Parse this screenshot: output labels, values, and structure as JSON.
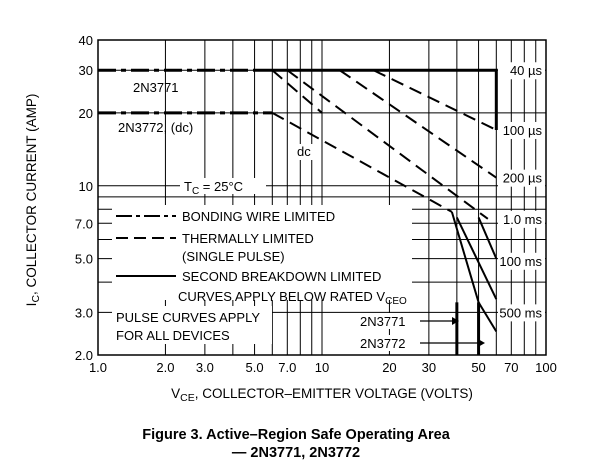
{
  "figure": {
    "caption_line1": "Figure 3. Active–Region Safe Operating Area",
    "caption_line2": "— 2N3771, 2N3772"
  },
  "chart_data": {
    "type": "line",
    "log_x": true,
    "log_y": true,
    "xlim": [
      1,
      100
    ],
    "ylim": [
      2,
      40
    ],
    "grid": true,
    "xlabel": "V",
    "xlabel_sub": "CE",
    "xlabel_rest": ", COLLECTOR–EMITTER VOLTAGE (VOLTS)",
    "ylabel": "I",
    "ylabel_sub": "C",
    "ylabel_rest": ", COLLECTOR CURRENT (AMP)",
    "x_ticks": [
      {
        "value": 1,
        "label": "1.0"
      },
      {
        "value": 2,
        "label": "2.0"
      },
      {
        "value": 3,
        "label": "3.0"
      },
      {
        "value": 5,
        "label": "5.0"
      },
      {
        "value": 7,
        "label": "7.0"
      },
      {
        "value": 10,
        "label": "10"
      },
      {
        "value": 20,
        "label": "20"
      },
      {
        "value": 30,
        "label": "30"
      },
      {
        "value": 50,
        "label": "50"
      },
      {
        "value": 70,
        "label": "70"
      },
      {
        "value": 100,
        "label": "100"
      }
    ],
    "y_ticks": [
      {
        "value": 2,
        "label": "2.0"
      },
      {
        "value": 3,
        "label": "3.0"
      },
      {
        "value": 5,
        "label": "5.0"
      },
      {
        "value": 7,
        "label": "7.0"
      },
      {
        "value": 10,
        "label": "10"
      },
      {
        "value": 20,
        "label": "20"
      },
      {
        "value": 30,
        "label": "30"
      },
      {
        "value": 40,
        "label": "40"
      }
    ],
    "legend": {
      "items": [
        {
          "style": "dashdot",
          "label": "BONDING WIRE LIMITED"
        },
        {
          "style": "dashed",
          "label": "THERMALLY LIMITED"
        },
        {
          "style": "none",
          "label": "(SINGLE PULSE)"
        },
        {
          "style": "solid",
          "label": "SECOND BREAKDOWN LIMITED"
        }
      ],
      "note_prefix": "CURVES APPLY BELOW RATED V",
      "note_sub": "CEO"
    },
    "pulse_note": [
      "PULSE CURVES APPLY",
      "FOR ALL DEVICES"
    ],
    "temperature": {
      "prefix": "T",
      "sub": "C",
      "suffix": " = 25°C"
    },
    "device_labels": {
      "n3771_top": "2N3771",
      "n3772_dc": "2N3772, (dc)",
      "dc": "dc",
      "n3771_arrow": "2N3771",
      "n3772_arrow": "2N3772"
    },
    "pulse_labels": [
      {
        "label": "40 µs",
        "y": 30
      },
      {
        "label": "100 µs",
        "y": 17
      },
      {
        "label": "200 µs",
        "y": 10.8
      },
      {
        "label": "1.0 ms",
        "y": 7.3
      },
      {
        "label": "100 ms",
        "y": 4.9
      },
      {
        "label": "500 ms",
        "y": 3.0
      }
    ],
    "series": [
      {
        "key": "2N3771 bonding wire limited",
        "style": "dashdot",
        "width": 3,
        "points": [
          [
            1,
            30
          ],
          [
            5,
            30
          ]
        ]
      },
      {
        "key": "2N3771 40us",
        "style": "solid",
        "width": 3,
        "points": [
          [
            5,
            30
          ],
          [
            60,
            30
          ],
          [
            60,
            17
          ]
        ]
      },
      {
        "key": "2N3772 bonding wire limited",
        "style": "dashdot",
        "width": 3,
        "points": [
          [
            1,
            20
          ],
          [
            6,
            20
          ]
        ]
      },
      {
        "key": "dc thermal",
        "style": "dashed",
        "width": 2,
        "points": [
          [
            6,
            20
          ],
          [
            38,
            7.8
          ]
        ]
      },
      {
        "key": "100us thermal",
        "style": "dashed",
        "width": 2,
        "points": [
          [
            17,
            30
          ],
          [
            60,
            17
          ]
        ]
      },
      {
        "key": "200us thermal",
        "style": "dashed",
        "width": 2,
        "points": [
          [
            12,
            30
          ],
          [
            60,
            10.8
          ]
        ]
      },
      {
        "key": "1ms thermal",
        "style": "dashed",
        "width": 2,
        "points": [
          [
            7,
            30
          ],
          [
            55,
            7.3
          ]
        ]
      },
      {
        "key": "2N3771 dc thermal from 30A",
        "style": "dashed",
        "width": 2,
        "points": [
          [
            6,
            30
          ],
          [
            10,
            20
          ]
        ]
      },
      {
        "key": "second breakdown dc",
        "style": "solid",
        "width": 2,
        "points": [
          [
            38,
            7.8
          ],
          [
            50,
            3.3
          ],
          [
            60,
            2.5
          ]
        ]
      },
      {
        "key": "second breakdown 100ms",
        "style": "solid",
        "width": 2,
        "points": [
          [
            40,
            7.4
          ],
          [
            60,
            3.4
          ]
        ]
      },
      {
        "key": "second breakdown 1ms",
        "style": "solid",
        "width": 2,
        "points": [
          [
            50,
            7.4
          ],
          [
            60,
            5.0
          ]
        ]
      },
      {
        "key": "2N3771 dc limit",
        "style": "solid",
        "width": 3,
        "points": [
          [
            50,
            3.3
          ],
          [
            50,
            2
          ]
        ]
      },
      {
        "key": "2N3772 dc limit",
        "style": "solid",
        "width": 3,
        "points": [
          [
            40,
            3.3
          ],
          [
            40,
            2
          ]
        ]
      }
    ]
  }
}
